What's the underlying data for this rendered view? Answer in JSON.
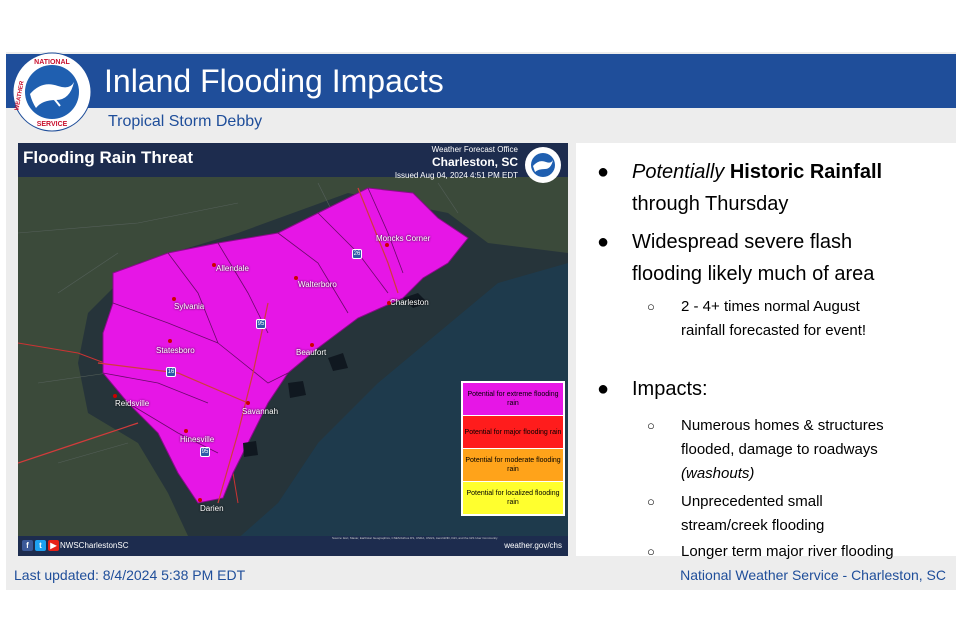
{
  "header": {
    "title": "Inland Flooding Impacts",
    "subtitle": "Tropical Storm Debby",
    "logo_text": "NATIONAL WEATHER SERVICE",
    "brand_color": "#1f4e9a"
  },
  "map": {
    "title": "Flooding Rain Threat",
    "office_label": "Weather Forecast Office",
    "office_city": "Charleston, SC",
    "issued": "Issued Aug 04, 2024 4:51 PM EDT",
    "cities": [
      "Moncks Corner",
      "Allendale",
      "Walterboro",
      "Charleston",
      "Sylvania",
      "Statesboro",
      "Beaufort",
      "Reidsville",
      "Savannah",
      "Hinesville",
      "Darien"
    ],
    "highways": [
      "26",
      "95",
      "16",
      "95"
    ],
    "threat_color": "#e616e6",
    "legend": [
      {
        "label": "Potential for extreme flooding rain",
        "color": "#e616e6"
      },
      {
        "label": "Potential for major flooding rain",
        "color": "#ff1c1c"
      },
      {
        "label": "Potential for moderate flooding rain",
        "color": "#ffa31a"
      },
      {
        "label": "Potential for localized flooding rain",
        "color": "#ffff2e"
      }
    ],
    "social_handle": "NWSCharlestonSC",
    "website": "weather.gov/chs",
    "attribution": "Source: Esri, Maxar, Earthstar Geographics, CNES/Airbus DS, USDA, USGS, AeroGRID, IGN, and the GIS User Community"
  },
  "bullets": {
    "b1_italic": "Potentially",
    "b1_bold": "Historic Rainfall",
    "b1_rest": "through Thursday",
    "b2_line1": "Widespread severe flash",
    "b2_line2": "flooding likely much of area",
    "b2_sub_line1": "2 - 4+ times normal August",
    "b2_sub_line2": "rainfall forecasted for event!",
    "b3": "Impacts:",
    "impacts": [
      {
        "line1": "Numerous homes & structures",
        "line2": "flooded, damage to roadways",
        "line3": "(washouts)"
      },
      {
        "line1": "Unprecedented  small",
        "line2": "stream/creek flooding"
      },
      {
        "line1": "Longer term major river flooding"
      }
    ]
  },
  "footer": {
    "last_updated": "Last updated: 8/4/2024 5:38 PM EDT",
    "office": "National Weather Service - Charleston, SC"
  }
}
